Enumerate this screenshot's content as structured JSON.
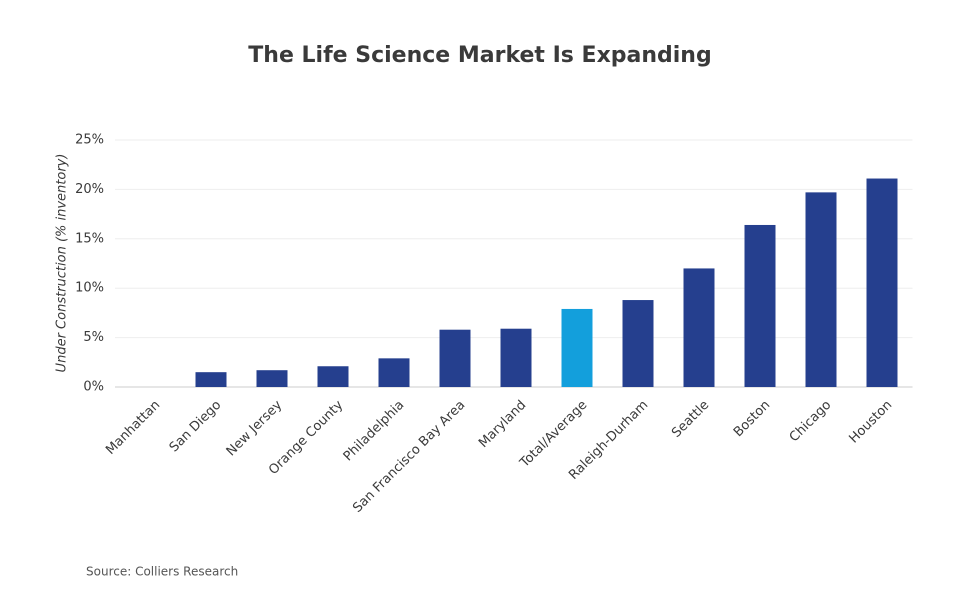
{
  "chart_data": {
    "type": "bar",
    "title": "The Life Science Market Is Expanding",
    "y_label": "Under Construction (% inventory)",
    "source": "Source: Colliers Research",
    "categories": [
      "Manhattan",
      "San Diego",
      "New Jersey",
      "Orange County",
      "Philadelphia",
      "San Francisco Bay Area",
      "Maryland",
      "Total/Average",
      "Raleigh-Durham",
      "Seattle",
      "Boston",
      "Chicago",
      "Houston"
    ],
    "values": [
      0,
      1.5,
      1.7,
      2.1,
      2.9,
      5.8,
      5.9,
      7.9,
      8.8,
      12.0,
      16.4,
      19.7,
      21.1
    ],
    "colors": [
      "#253f8e",
      "#253f8e",
      "#253f8e",
      "#253f8e",
      "#253f8e",
      "#253f8e",
      "#253f8e",
      "#139fdc",
      "#253f8e",
      "#253f8e",
      "#253f8e",
      "#253f8e",
      "#253f8e"
    ],
    "ylim": [
      0,
      25
    ],
    "yticks": [
      {
        "value": 0,
        "label": "0%"
      },
      {
        "value": 5,
        "label": "5%"
      },
      {
        "value": 10,
        "label": "10%"
      },
      {
        "value": 15,
        "label": "15%"
      },
      {
        "value": 20,
        "label": "20%"
      },
      {
        "value": 25,
        "label": "25%"
      }
    ],
    "grid": true
  }
}
